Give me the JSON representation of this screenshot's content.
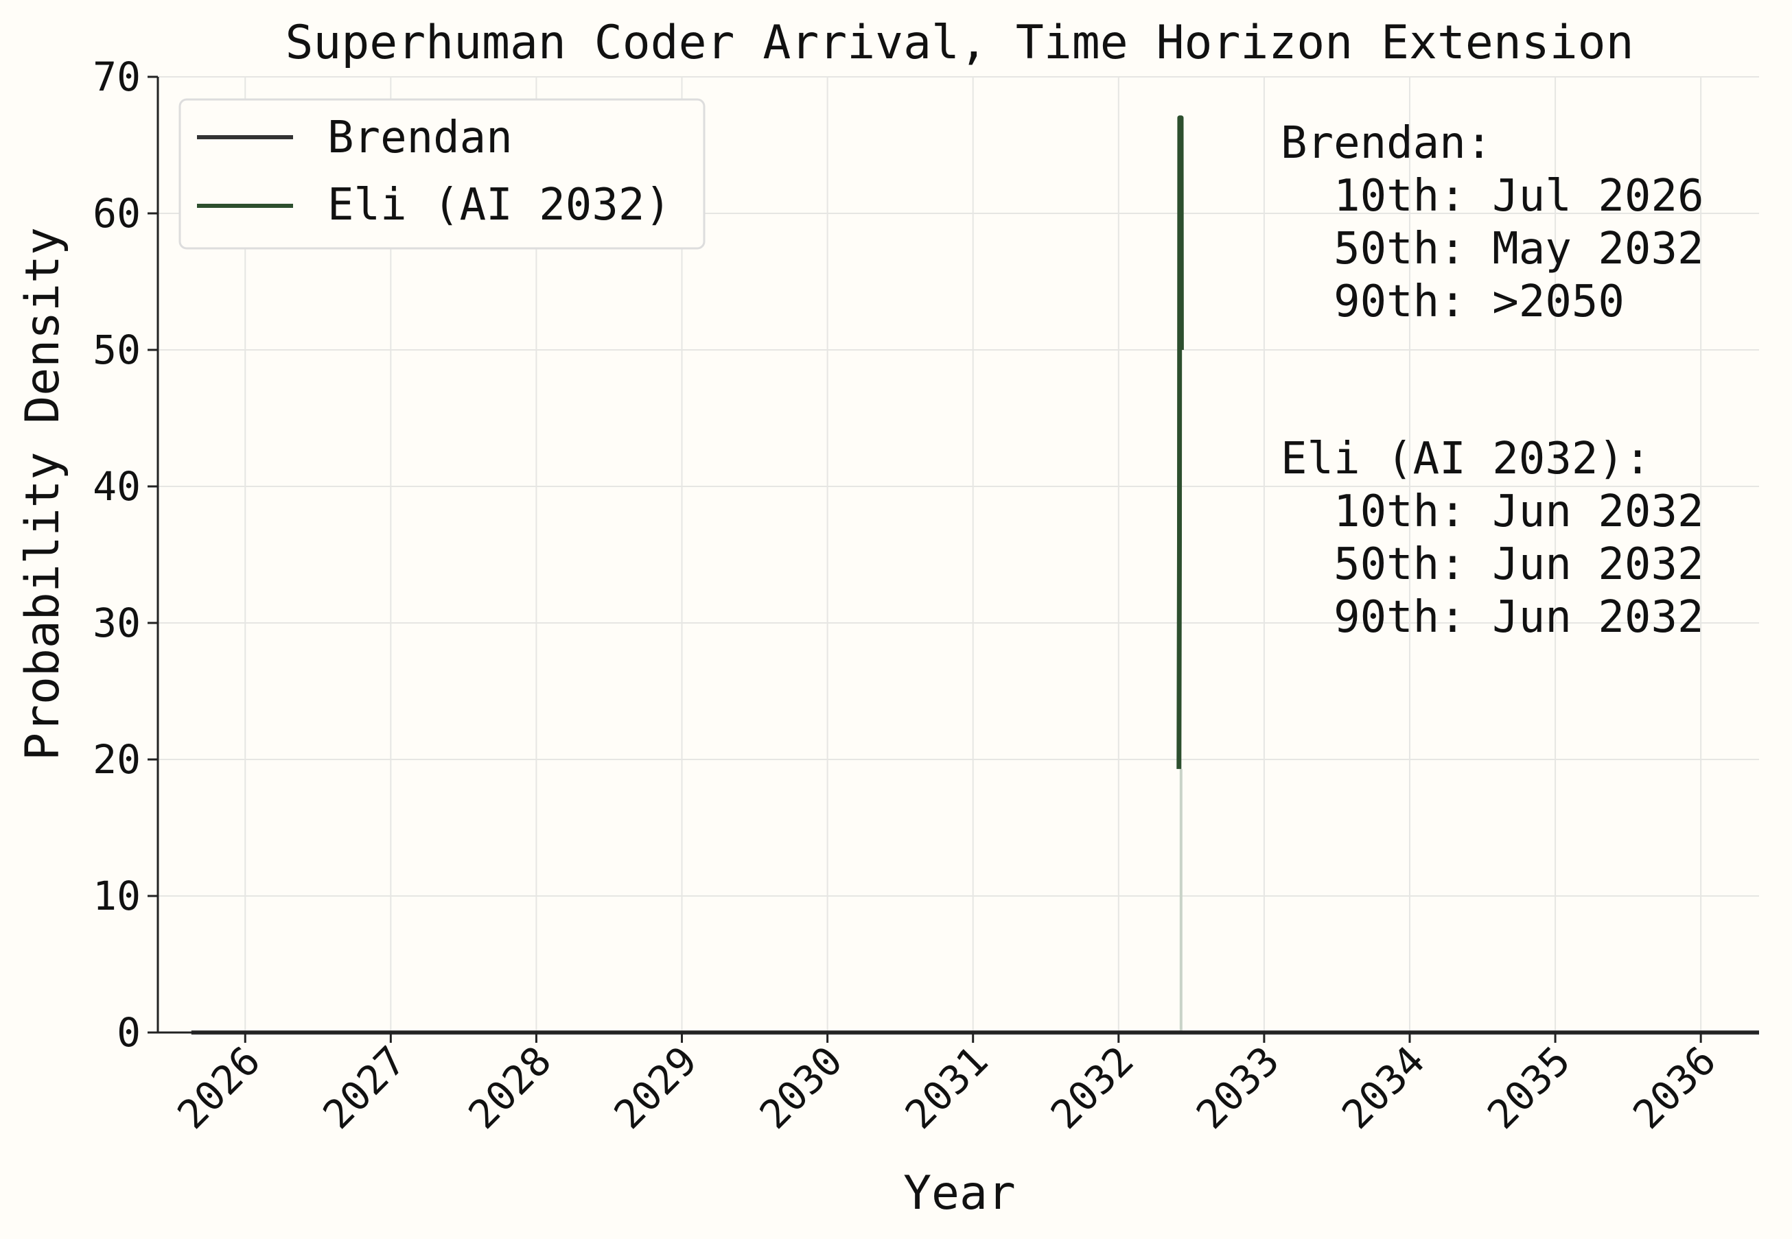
{
  "chart_data": {
    "type": "line",
    "title": "Superhuman Coder Arrival, Time Horizon Extension",
    "xlabel": "Year",
    "ylabel": "Probability Density",
    "x_ticks": [
      "2026",
      "2027",
      "2028",
      "2029",
      "2030",
      "2031",
      "2032",
      "2033",
      "2034",
      "2035",
      "2036"
    ],
    "y_ticks": [
      "0",
      "10",
      "20",
      "30",
      "40",
      "50",
      "60",
      "70"
    ],
    "xlim": [
      2025.4,
      2036.4
    ],
    "ylim": [
      0,
      70
    ],
    "grid": true,
    "legend_position": "top-left",
    "series": [
      {
        "name": "Brendan",
        "color": "#333333",
        "points": [
          [
            2025.63,
            0
          ],
          [
            2032.4,
            0
          ],
          [
            2032.45,
            0
          ],
          [
            2032.5,
            0
          ],
          [
            2036.4,
            0
          ]
        ]
      },
      {
        "name": "Eli (AI 2032)",
        "color": "#2d4f2e",
        "points": [
          [
            2032.415,
            19.3
          ],
          [
            2032.418,
            36
          ],
          [
            2032.42,
            67
          ],
          [
            2032.43,
            67
          ],
          [
            2032.432,
            50
          ]
        ]
      }
    ],
    "annotations": {
      "brendan": [
        "Brendan:",
        "  10th: Jul 2026",
        "  50th: May 2032",
        "  90th: >2050"
      ],
      "eli": [
        "Eli (AI 2032):",
        "  10th: Jun 2032",
        "  50th: Jun 2032",
        "  90th: Jun 2032"
      ]
    }
  }
}
